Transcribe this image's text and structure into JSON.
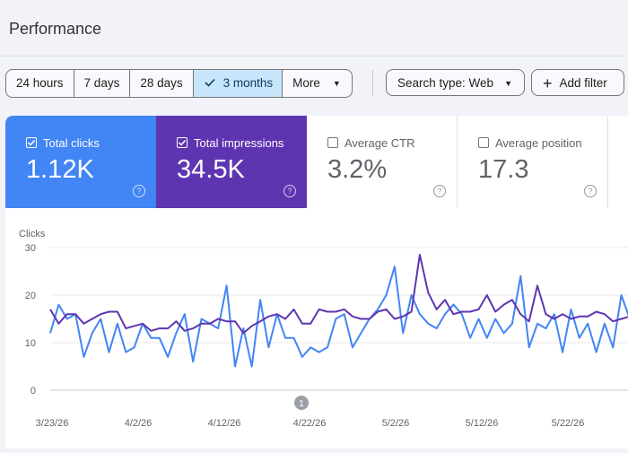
{
  "header": {
    "title": "Performance"
  },
  "toolbar": {
    "ranges": [
      "24 hours",
      "7 days",
      "28 days",
      "3 months"
    ],
    "selected_range": "3 months",
    "more_label": "More",
    "search_type_label": "Search type: Web",
    "add_filter_label": "Add filter"
  },
  "metrics": {
    "clicks": {
      "label": "Total clicks",
      "value": "1.12K",
      "checked": true,
      "color": "#4285f4"
    },
    "impressions": {
      "label": "Total impressions",
      "value": "34.5K",
      "checked": true,
      "color": "#5e35b1"
    },
    "ctr": {
      "label": "Average CTR",
      "value": "3.2%",
      "checked": false
    },
    "position": {
      "label": "Average position",
      "value": "17.3",
      "checked": false
    }
  },
  "chart_data": {
    "type": "line",
    "ylabel": "Clicks",
    "ylim": [
      0,
      30
    ],
    "yticks": [
      "0",
      "10",
      "20",
      "30"
    ],
    "xtick_labels": [
      "3/23/26",
      "4/2/26",
      "4/12/26",
      "4/22/26",
      "5/2/26",
      "5/12/26",
      "5/22/26"
    ],
    "annotation": "1",
    "grid": true,
    "series": [
      {
        "color": "#4285f4",
        "values": [
          12,
          18,
          15,
          16,
          7,
          12,
          15,
          8,
          14,
          8,
          9,
          14,
          11,
          11,
          7,
          12,
          16,
          6,
          15,
          14,
          13,
          22,
          5,
          13,
          5,
          19,
          9,
          16,
          11,
          11,
          7,
          9,
          8,
          9,
          15,
          16,
          9,
          12,
          15,
          17,
          20,
          26,
          12,
          20,
          16,
          14,
          13,
          16,
          18,
          16,
          11,
          15,
          11,
          15,
          12,
          14,
          24,
          9,
          14,
          13,
          16,
          8,
          17,
          11,
          14,
          8,
          14,
          9,
          20,
          15
        ]
      },
      {
        "color": "#5e35b1",
        "values": [
          17,
          14,
          16,
          16,
          14,
          15,
          16,
          16.5,
          16.5,
          13,
          13.5,
          14,
          12.5,
          13,
          13,
          14.5,
          12.5,
          13,
          14,
          14,
          15,
          14.5,
          14.5,
          12,
          13.5,
          14.5,
          15.5,
          16,
          15,
          17,
          14,
          14,
          17,
          16.5,
          16.5,
          17,
          15.5,
          15,
          15,
          16.5,
          17,
          15,
          15.5,
          16.5,
          28.5,
          20.5,
          17,
          19,
          16,
          16.5,
          16.5,
          17,
          20,
          16.5,
          18,
          19,
          16,
          14.5,
          22,
          16,
          15,
          16,
          15,
          15.5,
          15.5,
          16.5,
          16,
          14.5,
          15,
          15.5
        ]
      }
    ]
  }
}
